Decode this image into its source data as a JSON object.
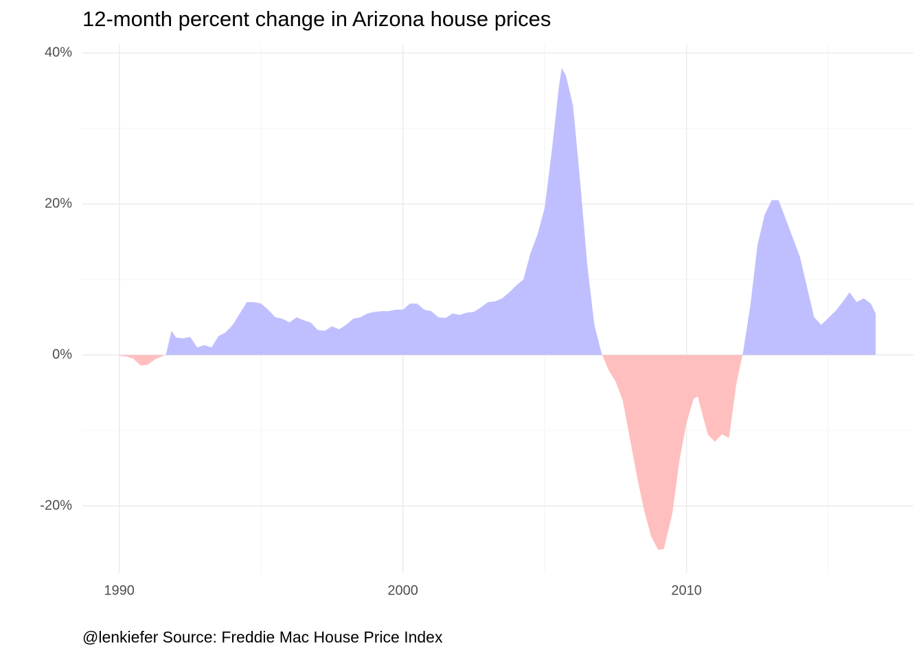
{
  "chart_data": {
    "type": "area",
    "title": "12-month percent change in Arizona house prices",
    "caption": "@lenkiefer Source: Freddie Mac House Price Index",
    "x": [
      1990.0,
      1990.25,
      1990.5,
      1990.75,
      1991.0,
      1991.25,
      1991.5,
      1991.65,
      1991.84,
      1992.0,
      1992.25,
      1992.5,
      1992.75,
      1993.0,
      1993.25,
      1993.5,
      1993.75,
      1994.0,
      1994.25,
      1994.5,
      1994.75,
      1995.0,
      1995.25,
      1995.5,
      1995.75,
      1996.0,
      1996.25,
      1996.5,
      1996.75,
      1997.0,
      1997.25,
      1997.5,
      1997.75,
      1998.0,
      1998.25,
      1998.5,
      1998.75,
      1999.0,
      1999.25,
      1999.5,
      1999.75,
      2000.0,
      2000.25,
      2000.5,
      2000.75,
      2001.0,
      2001.25,
      2001.5,
      2001.75,
      2002.0,
      2002.25,
      2002.5,
      2002.75,
      2003.0,
      2003.25,
      2003.5,
      2003.75,
      2004.0,
      2004.25,
      2004.5,
      2004.75,
      2005.0,
      2005.25,
      2005.5,
      2005.6,
      2005.75,
      2006.0,
      2006.25,
      2006.5,
      2006.75,
      2007.0,
      2007.25,
      2007.5,
      2007.75,
      2008.0,
      2008.25,
      2008.5,
      2008.75,
      2009.0,
      2009.2,
      2009.5,
      2009.75,
      2010.0,
      2010.25,
      2010.4,
      2010.5,
      2010.75,
      2011.0,
      2011.25,
      2011.5,
      2011.75,
      2012.0,
      2012.25,
      2012.5,
      2012.75,
      2013.0,
      2013.25,
      2013.5,
      2013.75,
      2014.0,
      2014.25,
      2014.5,
      2014.75,
      2015.0,
      2015.25,
      2015.5,
      2015.75,
      2016.0,
      2016.25,
      2016.5,
      2016.67
    ],
    "values": [
      -0.1,
      -0.2,
      -0.5,
      -1.4,
      -1.3,
      -0.6,
      -0.2,
      0.1,
      3.2,
      2.3,
      2.2,
      2.4,
      1.0,
      1.3,
      1.0,
      2.5,
      3.0,
      4.0,
      5.5,
      7.0,
      7.0,
      6.8,
      6.0,
      5.0,
      4.8,
      4.3,
      5.0,
      4.6,
      4.3,
      3.3,
      3.2,
      3.8,
      3.4,
      4.0,
      4.8,
      5.0,
      5.5,
      5.7,
      5.8,
      5.8,
      6.0,
      6.0,
      6.8,
      6.8,
      6.0,
      5.8,
      5.0,
      4.9,
      5.5,
      5.3,
      5.6,
      5.7,
      6.3,
      7.0,
      7.1,
      7.5,
      8.3,
      9.2,
      10.0,
      13.5,
      16.0,
      19.5,
      27.0,
      35.5,
      38.0,
      37.0,
      33.0,
      23.0,
      12.0,
      4.0,
      0.3,
      -2.0,
      -3.5,
      -6.0,
      -11.0,
      -16.0,
      -20.5,
      -24.0,
      -25.8,
      -25.7,
      -21.0,
      -14.0,
      -9.0,
      -5.8,
      -5.5,
      -7.0,
      -10.5,
      -11.5,
      -10.5,
      -11.0,
      -4.0,
      0.5,
      6.5,
      14.5,
      18.5,
      20.5,
      20.5,
      18.0,
      15.5,
      13.0,
      9.0,
      5.0,
      4.0,
      4.9,
      5.8,
      7.0,
      8.3,
      7.0,
      7.5,
      6.8,
      5.5
    ],
    "positive_color": "#bfbfff",
    "negative_color": "#ffbfbf",
    "xlim": [
      1988.7,
      2018.0
    ],
    "ylim": [
      -28.9,
      41.1
    ],
    "xticks": [
      1990,
      2000,
      2010
    ],
    "yticks": [
      {
        "value": -20,
        "label": "-20%"
      },
      {
        "value": 0,
        "label": "0%"
      },
      {
        "value": 20,
        "label": "20%"
      },
      {
        "value": 40,
        "label": "40%"
      }
    ],
    "xminor": [
      1995,
      2005,
      2015
    ],
    "yminor": [
      -10,
      10,
      30
    ],
    "grid": true
  }
}
